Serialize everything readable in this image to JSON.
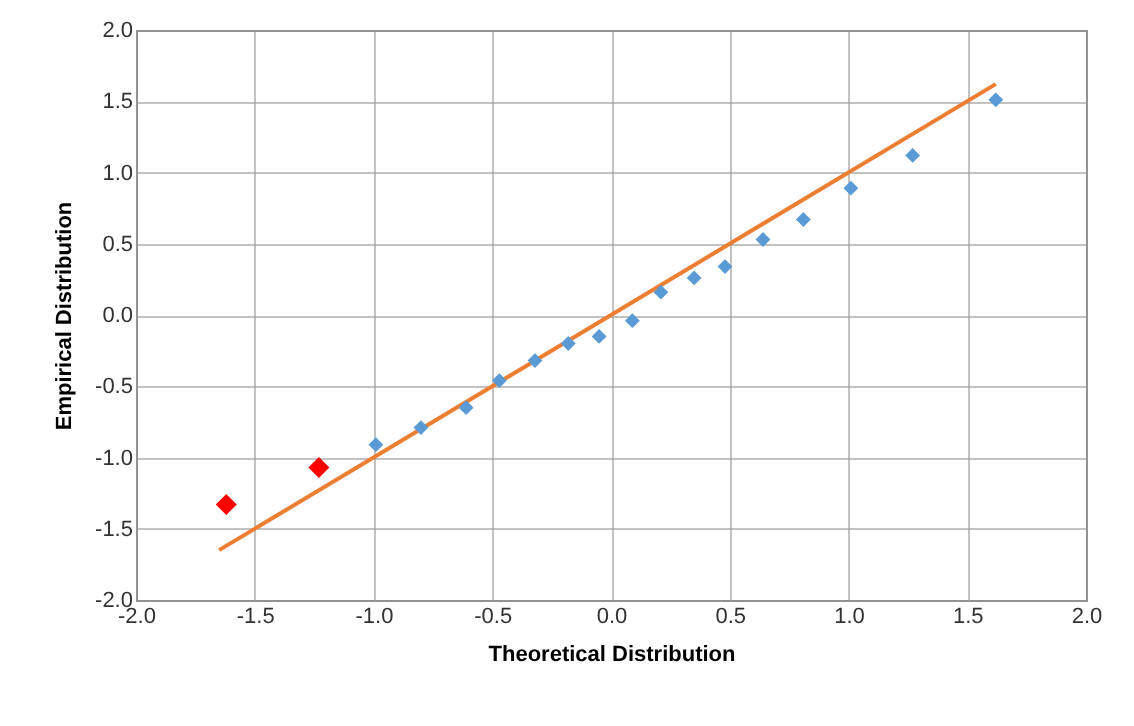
{
  "chart_data": {
    "type": "scatter",
    "xlabel": "Theoretical Distribution",
    "ylabel": "Empirical Distribution",
    "xlim": [
      -2,
      2
    ],
    "ylim": [
      -2,
      2
    ],
    "xticks": [
      {
        "value": -2,
        "label": "-2.0"
      },
      {
        "value": -1.5,
        "label": "-1.5"
      },
      {
        "value": -1,
        "label": "-1.0"
      },
      {
        "value": -0.5,
        "label": "-0.5"
      },
      {
        "value": 0,
        "label": "0.0"
      },
      {
        "value": 0.5,
        "label": "0.5"
      },
      {
        "value": 1,
        "label": "1.0"
      },
      {
        "value": 1.5,
        "label": "1.5"
      },
      {
        "value": 2,
        "label": "2.0"
      }
    ],
    "yticks": [
      {
        "value": -2,
        "label": "-2.0"
      },
      {
        "value": -1.5,
        "label": "-1.5"
      },
      {
        "value": -1,
        "label": "-1.0"
      },
      {
        "value": -0.5,
        "label": "-0.5"
      },
      {
        "value": 0,
        "label": "0.0"
      },
      {
        "value": 0.5,
        "label": "0.5"
      },
      {
        "value": 1,
        "label": "1.0"
      },
      {
        "value": 1.5,
        "label": "1.5"
      },
      {
        "value": 2,
        "label": "2.0"
      }
    ],
    "grid": true,
    "marker": "diamond",
    "series": [
      {
        "type": "line",
        "marker": "none",
        "color": "#ed7d31",
        "x": [
          -1.65,
          1.62
        ],
        "values": [
          -1.65,
          1.62
        ]
      },
      {
        "color": "#5b9bd5",
        "x": [
          -0.99,
          -0.8,
          -0.61,
          -0.47,
          -0.32,
          -0.18,
          -0.05,
          0.09,
          0.21,
          0.35,
          0.48,
          0.64,
          0.81,
          1.01,
          1.27,
          1.62
        ],
        "values": [
          -0.91,
          -0.79,
          -0.65,
          -0.46,
          -0.32,
          -0.2,
          -0.15,
          -0.04,
          0.16,
          0.26,
          0.34,
          0.53,
          0.67,
          0.89,
          1.12,
          1.51
        ]
      },
      {
        "color": "#ff0000",
        "x": [
          -1.62,
          -1.23
        ],
        "values": [
          -1.33,
          -1.07
        ]
      }
    ]
  }
}
